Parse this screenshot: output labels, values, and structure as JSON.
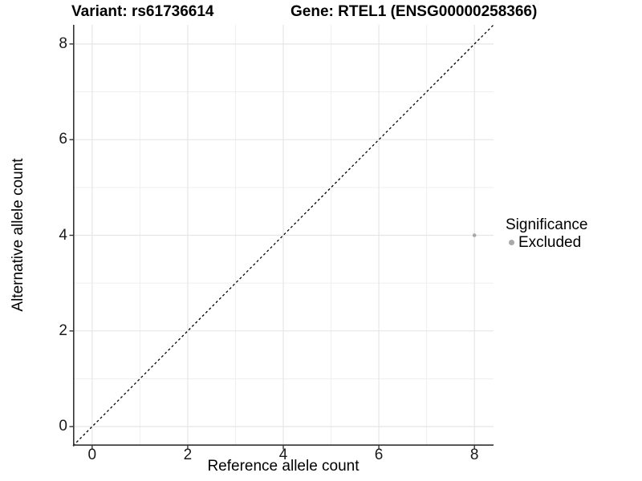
{
  "figure": {
    "title_left": "Variant: rs61736614",
    "title_right": "Gene: RTEL1 (ENSG00000258366)"
  },
  "chart_data": {
    "type": "scatter",
    "title_left": "Variant: rs61736614",
    "title_right": "Gene: RTEL1 (ENSG00000258366)",
    "xlabel": "Reference allele count",
    "ylabel": "Alternative allele count",
    "xlim": [
      -0.4,
      8.4
    ],
    "ylim": [
      -0.4,
      8.4
    ],
    "xticks": [
      0,
      2,
      4,
      6,
      8
    ],
    "yticks": [
      0,
      2,
      4,
      6,
      8
    ],
    "minor_xticks": [
      1,
      3,
      5,
      7
    ],
    "minor_yticks": [
      1,
      3,
      5,
      7
    ],
    "grid": "major-and-minor",
    "points": [
      {
        "x": 8,
        "y": 4,
        "series": "Excluded"
      }
    ],
    "identity_line": {
      "equation": "y = x",
      "style": "dashed",
      "color": "#000000"
    },
    "legend": {
      "title": "Significance",
      "position": "right",
      "items": [
        {
          "label": "Excluded",
          "color": "#a8a8a8",
          "marker": "circle"
        }
      ]
    },
    "colors": {
      "point": "#a8a8a8",
      "grid_major": "#e6e6e6",
      "grid_minor": "#efefef",
      "axis": "#333333",
      "tick_text": "#1a1a1a",
      "background": "#ffffff"
    }
  }
}
